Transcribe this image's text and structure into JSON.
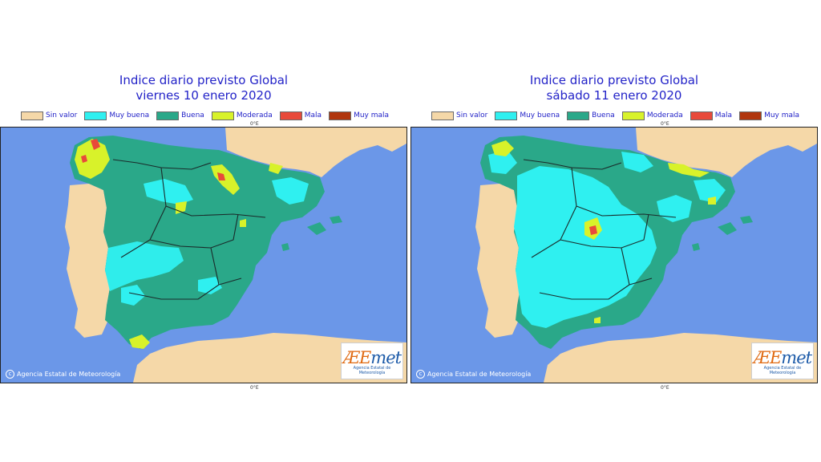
{
  "legend": {
    "items": [
      {
        "label": "Sin valor",
        "color": "#f5d8a8"
      },
      {
        "label": "Muy buena",
        "color": "#2ff0f0"
      },
      {
        "label": "Buena",
        "color": "#2aa889"
      },
      {
        "label": "Moderada",
        "color": "#d8f22a"
      },
      {
        "label": "Mala",
        "color": "#e84a3a"
      },
      {
        "label": "Muy mala",
        "color": "#b0360e"
      }
    ]
  },
  "colors": {
    "title": "#2323c8",
    "sea": "#6b97e8",
    "land_no_value": "#f5d8a8"
  },
  "panels": [
    {
      "title_line1": "Indice diario previsto Global",
      "title_line2": "viernes 10 enero 2020",
      "degree_label_top": "0°E",
      "degree_label_bottom": "0°E",
      "copyright": "Agencia Estatal de Meteorología",
      "logo_text_ae": "ÆE",
      "logo_text_met": "met",
      "logo_subtitle": "Agencia Estatal de Meteorología",
      "dominant_category": "Buena"
    },
    {
      "title_line1": "Indice diario previsto Global",
      "title_line2": "sábado 11 enero 2020",
      "degree_label_top": "0°E",
      "degree_label_bottom": "0°E",
      "copyright": "Agencia Estatal de Meteorología",
      "logo_text_ae": "ÆE",
      "logo_text_met": "met",
      "logo_subtitle": "Agencia Estatal de Meteorología",
      "dominant_category": "Muy buena"
    }
  ]
}
